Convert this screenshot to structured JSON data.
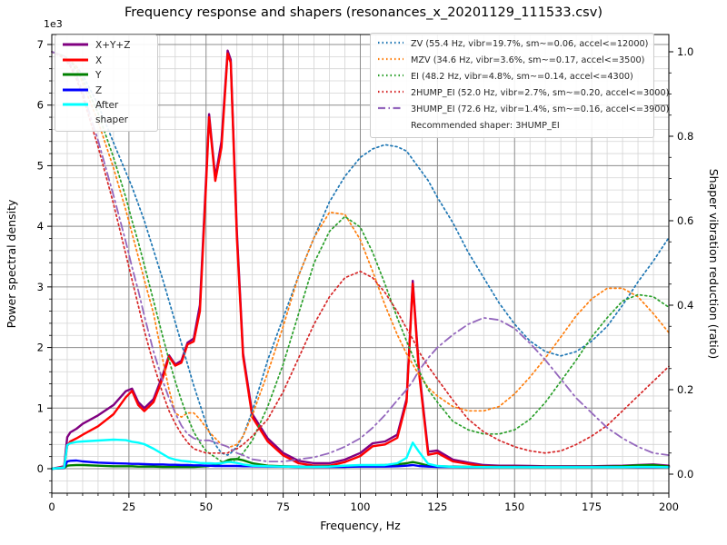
{
  "title": "Frequency response and shapers (resonances_x_20201129_111533.csv)",
  "axes": {
    "x": {
      "label": "Frequency, Hz",
      "min": 0,
      "max": 200,
      "major_ticks": [
        0,
        25,
        50,
        75,
        100,
        125,
        150,
        175,
        200
      ],
      "tick_labels": [
        "0",
        "25",
        "50",
        "75",
        "100",
        "125",
        "150",
        "175",
        "200"
      ],
      "minor_step": 5
    },
    "y_left": {
      "label": "Power spectral density",
      "offset_label": "1e3",
      "min": 0,
      "max": 7000,
      "major_ticks": [
        0,
        1000,
        2000,
        3000,
        4000,
        5000,
        6000,
        7000
      ],
      "tick_labels": [
        "0",
        "1",
        "2",
        "3",
        "4",
        "5",
        "6",
        "7"
      ],
      "minor_step": 200
    },
    "y_right": {
      "label": "Shaper vibration reduction (ratio)",
      "min": 0,
      "max": 1,
      "major_ticks": [
        0,
        0.2,
        0.4,
        0.6,
        0.8,
        1.0
      ],
      "tick_labels": [
        "0.0",
        "0.2",
        "0.4",
        "0.6",
        "0.8",
        "1.0"
      ],
      "minor_step": 0.05
    }
  },
  "legend_left": {
    "items": [
      {
        "label": "X+Y+Z",
        "color": "#800080",
        "style": "solid"
      },
      {
        "label": "X",
        "color": "#ff0000",
        "style": "solid"
      },
      {
        "label": "Y",
        "color": "#008000",
        "style": "solid"
      },
      {
        "label": "Z",
        "color": "#0000ff",
        "style": "solid"
      },
      {
        "label": "After shaper",
        "color": "#00ffff",
        "style": "solid"
      }
    ]
  },
  "legend_right": {
    "items": [
      {
        "label": "ZV (55.4 Hz, vibr=19.7%, sm~=0.06, accel<=12000)",
        "color": "#1f77b4",
        "style": "dotted"
      },
      {
        "label": "MZV (34.6 Hz, vibr=3.6%, sm~=0.17, accel<=3500)",
        "color": "#ff7f0e",
        "style": "dotted"
      },
      {
        "label": "EI (48.2 Hz, vibr=4.8%, sm~=0.14, accel<=4300)",
        "color": "#2ca02c",
        "style": "dotted"
      },
      {
        "label": "2HUMP_EI (52.0 Hz, vibr=2.7%, sm~=0.20, accel<=3000)",
        "color": "#d62728",
        "style": "dotted"
      },
      {
        "label": "3HUMP_EI (72.6 Hz, vibr=1.4%, sm~=0.16, accel<=3900)",
        "color": "#9467bd",
        "style": "dashdot"
      }
    ],
    "note": "Recommended shaper: 3HUMP_EI"
  },
  "chart_data": {
    "type": "line",
    "title": "Frequency response and shapers (resonances_x_20201129_111533.csv)",
    "xlabel": "Frequency, Hz",
    "ylabel_left": "Power spectral density",
    "ylabel_right": "Shaper vibration reduction (ratio)",
    "x_range": [
      0,
      200
    ],
    "y_left_range_units": "1e3",
    "y_left_ticks": [
      0,
      1000,
      2000,
      3000,
      4000,
      5000,
      6000,
      7000
    ],
    "y_right_range": [
      0.0,
      1.0
    ],
    "grid": "major+minor",
    "x": [
      0,
      4,
      5,
      6,
      8,
      10,
      15,
      20,
      24,
      26,
      28,
      30,
      33,
      36,
      38,
      40,
      42,
      44,
      46,
      48,
      50,
      51,
      53,
      55,
      57,
      58,
      60,
      62,
      65,
      70,
      75,
      80,
      85,
      90,
      95,
      100,
      104,
      108,
      112,
      115,
      117,
      119,
      122,
      125,
      130,
      135,
      140,
      145,
      150,
      155,
      160,
      165,
      170,
      175,
      180,
      185,
      190,
      195,
      200
    ],
    "psd_series": [
      {
        "name": "X+Y+Z",
        "color": "#800080",
        "style": "solid",
        "axis": "left",
        "values": [
          0,
          40,
          520,
          600,
          660,
          740,
          880,
          1050,
          1280,
          1320,
          1100,
          1000,
          1150,
          1550,
          1870,
          1720,
          1780,
          2080,
          2150,
          2700,
          4800,
          5850,
          4800,
          5400,
          6900,
          6750,
          3900,
          1900,
          900,
          500,
          260,
          130,
          90,
          90,
          150,
          260,
          420,
          450,
          560,
          1150,
          3100,
          1650,
          280,
          300,
          150,
          100,
          60,
          50,
          50,
          45,
          40,
          40,
          40,
          40,
          45,
          50,
          60,
          70,
          50
        ]
      },
      {
        "name": "X",
        "color": "#ff0000",
        "style": "solid",
        "axis": "left",
        "values": [
          0,
          30,
          380,
          450,
          500,
          560,
          700,
          900,
          1180,
          1285,
          1050,
          950,
          1100,
          1500,
          1850,
          1700,
          1750,
          2050,
          2100,
          2600,
          4700,
          5800,
          4750,
          5300,
          6850,
          6700,
          3800,
          1850,
          850,
          450,
          220,
          90,
          50,
          50,
          110,
          210,
          370,
          400,
          510,
          1100,
          3050,
          1600,
          230,
          260,
          120,
          80,
          40,
          30,
          30,
          25,
          25,
          25,
          25,
          25,
          30,
          35,
          40,
          50,
          35
        ]
      },
      {
        "name": "Y",
        "color": "#008000",
        "style": "solid",
        "axis": "left",
        "values": [
          0,
          10,
          50,
          55,
          60,
          60,
          50,
          40,
          40,
          40,
          35,
          35,
          35,
          30,
          30,
          30,
          30,
          30,
          30,
          35,
          40,
          45,
          60,
          90,
          140,
          155,
          160,
          140,
          90,
          50,
          40,
          35,
          35,
          40,
          45,
          50,
          55,
          60,
          70,
          90,
          110,
          90,
          50,
          40,
          35,
          30,
          30,
          30,
          30,
          30,
          30,
          30,
          30,
          30,
          35,
          40,
          55,
          60,
          35
        ]
      },
      {
        "name": "Z",
        "color": "#0000ff",
        "style": "solid",
        "axis": "left",
        "values": [
          0,
          15,
          120,
          130,
          135,
          120,
          100,
          90,
          85,
          80,
          80,
          75,
          70,
          70,
          65,
          65,
          60,
          60,
          55,
          55,
          50,
          50,
          45,
          45,
          45,
          45,
          45,
          40,
          40,
          35,
          35,
          30,
          30,
          30,
          30,
          35,
          35,
          35,
          40,
          50,
          60,
          45,
          35,
          30,
          30,
          25,
          25,
          25,
          25,
          25,
          25,
          25,
          25,
          25,
          25,
          25,
          25,
          25,
          25
        ]
      },
      {
        "name": "After shaper",
        "color": "#00ffff",
        "style": "solid",
        "axis": "left",
        "values": [
          0,
          20,
          390,
          420,
          440,
          450,
          465,
          480,
          470,
          445,
          430,
          405,
          330,
          240,
          180,
          150,
          130,
          120,
          110,
          95,
          90,
          90,
          85,
          90,
          110,
          110,
          95,
          70,
          50,
          40,
          35,
          30,
          30,
          35,
          50,
          60,
          60,
          60,
          90,
          180,
          430,
          280,
          80,
          45,
          30,
          28,
          27,
          26,
          26,
          26,
          26,
          26,
          26,
          26,
          26,
          26,
          28,
          28,
          26
        ]
      }
    ],
    "shaper_series": [
      {
        "name": "ZV",
        "color": "#1f77b4",
        "style": "dotted",
        "axis": "right",
        "values": [
          1.0,
          0.985,
          0.98,
          0.975,
          0.965,
          0.945,
          0.875,
          0.785,
          0.715,
          0.68,
          0.64,
          0.6,
          0.53,
          0.46,
          0.41,
          0.36,
          0.31,
          0.26,
          0.21,
          0.165,
          0.12,
          0.1,
          0.07,
          0.05,
          0.045,
          0.05,
          0.065,
          0.09,
          0.15,
          0.27,
          0.37,
          0.47,
          0.56,
          0.645,
          0.705,
          0.75,
          0.77,
          0.78,
          0.775,
          0.765,
          0.745,
          0.725,
          0.695,
          0.655,
          0.595,
          0.525,
          0.465,
          0.405,
          0.355,
          0.315,
          0.29,
          0.28,
          0.29,
          0.315,
          0.35,
          0.4,
          0.455,
          0.505,
          0.56
        ]
      },
      {
        "name": "MZV",
        "color": "#ff7f0e",
        "style": "dotted",
        "axis": "right",
        "values": [
          1.0,
          0.99,
          0.985,
          0.98,
          0.965,
          0.925,
          0.835,
          0.725,
          0.625,
          0.57,
          0.515,
          0.46,
          0.38,
          0.27,
          0.2,
          0.145,
          0.135,
          0.145,
          0.145,
          0.13,
          0.11,
          0.1,
          0.085,
          0.07,
          0.065,
          0.065,
          0.07,
          0.09,
          0.14,
          0.24,
          0.35,
          0.47,
          0.56,
          0.62,
          0.615,
          0.555,
          0.48,
          0.4,
          0.33,
          0.285,
          0.26,
          0.235,
          0.205,
          0.185,
          0.16,
          0.15,
          0.15,
          0.16,
          0.19,
          0.23,
          0.275,
          0.325,
          0.375,
          0.415,
          0.44,
          0.44,
          0.42,
          0.38,
          0.335
        ]
      },
      {
        "name": "EI",
        "color": "#2ca02c",
        "style": "dotted",
        "axis": "right",
        "values": [
          1.0,
          0.99,
          0.985,
          0.98,
          0.955,
          0.935,
          0.855,
          0.75,
          0.655,
          0.6,
          0.55,
          0.495,
          0.41,
          0.325,
          0.27,
          0.22,
          0.175,
          0.135,
          0.1,
          0.075,
          0.055,
          0.05,
          0.04,
          0.03,
          0.03,
          0.03,
          0.035,
          0.05,
          0.08,
          0.16,
          0.26,
          0.38,
          0.5,
          0.575,
          0.61,
          0.585,
          0.525,
          0.45,
          0.37,
          0.315,
          0.28,
          0.245,
          0.2,
          0.17,
          0.125,
          0.105,
          0.095,
          0.095,
          0.105,
          0.13,
          0.17,
          0.22,
          0.27,
          0.325,
          0.37,
          0.41,
          0.425,
          0.42,
          0.395
        ]
      },
      {
        "name": "2HUMP_EI",
        "color": "#d62728",
        "style": "dotted",
        "axis": "right",
        "values": [
          1.0,
          0.985,
          0.975,
          0.965,
          0.935,
          0.895,
          0.775,
          0.64,
          0.52,
          0.46,
          0.4,
          0.34,
          0.26,
          0.19,
          0.15,
          0.12,
          0.095,
          0.075,
          0.06,
          0.055,
          0.05,
          0.05,
          0.05,
          0.05,
          0.05,
          0.055,
          0.06,
          0.07,
          0.09,
          0.13,
          0.195,
          0.275,
          0.355,
          0.42,
          0.465,
          0.48,
          0.465,
          0.43,
          0.385,
          0.345,
          0.32,
          0.29,
          0.255,
          0.225,
          0.175,
          0.13,
          0.1,
          0.08,
          0.065,
          0.055,
          0.05,
          0.055,
          0.07,
          0.09,
          0.115,
          0.15,
          0.185,
          0.22,
          0.255
        ]
      },
      {
        "name": "3HUMP_EI",
        "color": "#9467bd",
        "style": "dashdot",
        "axis": "right",
        "values": [
          1.0,
          0.99,
          0.98,
          0.97,
          0.945,
          0.905,
          0.79,
          0.66,
          0.55,
          0.49,
          0.435,
          0.375,
          0.29,
          0.22,
          0.18,
          0.145,
          0.115,
          0.095,
          0.085,
          0.08,
          0.08,
          0.08,
          0.075,
          0.07,
          0.065,
          0.06,
          0.05,
          0.045,
          0.035,
          0.03,
          0.03,
          0.035,
          0.04,
          0.05,
          0.065,
          0.085,
          0.11,
          0.14,
          0.175,
          0.2,
          0.22,
          0.245,
          0.275,
          0.3,
          0.33,
          0.355,
          0.37,
          0.365,
          0.345,
          0.31,
          0.27,
          0.225,
          0.18,
          0.145,
          0.11,
          0.085,
          0.065,
          0.05,
          0.045
        ]
      }
    ],
    "legend_note": "Recommended shaper: 3HUMP_EI"
  },
  "colors": {
    "grid_major": "#8c8c8c",
    "grid_minor": "#d4d4d4",
    "spine": "#000000",
    "text": "#000000"
  }
}
